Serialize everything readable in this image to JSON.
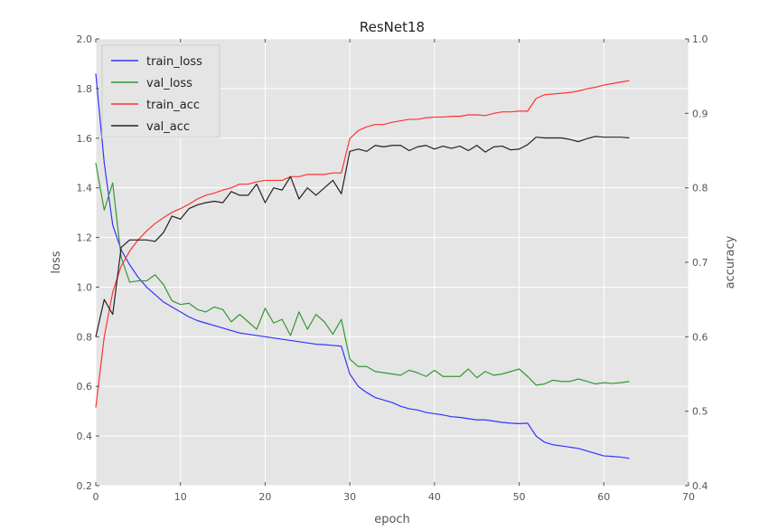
{
  "chart_data": {
    "type": "line",
    "title": "ResNet18",
    "xlabel": "epoch",
    "ylabel": "loss",
    "y2label": "accuracy",
    "xlim": [
      0,
      70
    ],
    "ylim": [
      0.2,
      2.0
    ],
    "y2lim": [
      0.4,
      1.0
    ],
    "xticks": [
      "0",
      "10",
      "20",
      "30",
      "40",
      "50",
      "60",
      "70"
    ],
    "yticks": [
      "0.2",
      "0.4",
      "0.6",
      "0.8",
      "1.0",
      "1.2",
      "1.4",
      "1.6",
      "1.8",
      "2.0"
    ],
    "y2ticks": [
      "0.4",
      "0.5",
      "0.6",
      "0.7",
      "0.8",
      "0.9",
      "1.0"
    ],
    "grid": true,
    "legend_position": "top-left",
    "series": [
      {
        "name": "train_loss",
        "axis": "left",
        "color": "#3333ff",
        "x": [
          0,
          1,
          2,
          3,
          4,
          5,
          6,
          7,
          8,
          9,
          10,
          11,
          12,
          13,
          14,
          15,
          16,
          17,
          18,
          19,
          20,
          21,
          22,
          23,
          24,
          25,
          26,
          27,
          28,
          29,
          30,
          31,
          32,
          33,
          34,
          35,
          36,
          37,
          38,
          39,
          40,
          41,
          42,
          43,
          44,
          45,
          46,
          47,
          48,
          49,
          50,
          51,
          52,
          53,
          54,
          55,
          56,
          57,
          58,
          59,
          60,
          61,
          62,
          63
        ],
        "values": [
          1.86,
          1.5,
          1.25,
          1.15,
          1.09,
          1.04,
          1.0,
          0.97,
          0.94,
          0.92,
          0.9,
          0.88,
          0.865,
          0.855,
          0.845,
          0.835,
          0.825,
          0.815,
          0.81,
          0.805,
          0.8,
          0.795,
          0.79,
          0.785,
          0.78,
          0.775,
          0.77,
          0.768,
          0.765,
          0.762,
          0.65,
          0.6,
          0.575,
          0.555,
          0.545,
          0.535,
          0.52,
          0.51,
          0.505,
          0.495,
          0.49,
          0.485,
          0.478,
          0.475,
          0.47,
          0.465,
          0.465,
          0.46,
          0.455,
          0.452,
          0.45,
          0.452,
          0.4,
          0.375,
          0.365,
          0.36,
          0.355,
          0.35,
          0.34,
          0.33,
          0.32,
          0.318,
          0.315,
          0.31
        ]
      },
      {
        "name": "val_loss",
        "axis": "left",
        "color": "#339933",
        "x": [
          0,
          1,
          2,
          3,
          4,
          5,
          6,
          7,
          8,
          9,
          10,
          11,
          12,
          13,
          14,
          15,
          16,
          17,
          18,
          19,
          20,
          21,
          22,
          23,
          24,
          25,
          26,
          27,
          28,
          29,
          30,
          31,
          32,
          33,
          34,
          35,
          36,
          37,
          38,
          39,
          40,
          41,
          42,
          43,
          44,
          45,
          46,
          47,
          48,
          49,
          50,
          51,
          52,
          53,
          54,
          55,
          56,
          57,
          58,
          59,
          60,
          61,
          62,
          63
        ],
        "values": [
          1.5,
          1.31,
          1.42,
          1.12,
          1.02,
          1.025,
          1.025,
          1.05,
          1.01,
          0.945,
          0.93,
          0.935,
          0.91,
          0.9,
          0.92,
          0.91,
          0.86,
          0.89,
          0.86,
          0.83,
          0.915,
          0.855,
          0.87,
          0.805,
          0.9,
          0.83,
          0.89,
          0.86,
          0.81,
          0.87,
          0.71,
          0.68,
          0.68,
          0.66,
          0.655,
          0.65,
          0.645,
          0.665,
          0.655,
          0.64,
          0.665,
          0.64,
          0.64,
          0.64,
          0.67,
          0.635,
          0.66,
          0.645,
          0.65,
          0.66,
          0.67,
          0.64,
          0.605,
          0.61,
          0.625,
          0.62,
          0.62,
          0.63,
          0.62,
          0.61,
          0.615,
          0.612,
          0.615,
          0.62
        ]
      },
      {
        "name": "train_acc",
        "axis": "right",
        "color": "#ff3333",
        "x": [
          0,
          1,
          2,
          3,
          4,
          5,
          6,
          7,
          8,
          9,
          10,
          11,
          12,
          13,
          14,
          15,
          16,
          17,
          18,
          19,
          20,
          21,
          22,
          23,
          24,
          25,
          26,
          27,
          28,
          29,
          30,
          31,
          32,
          33,
          34,
          35,
          36,
          37,
          38,
          39,
          40,
          41,
          42,
          43,
          44,
          45,
          46,
          47,
          48,
          49,
          50,
          51,
          52,
          53,
          54,
          55,
          56,
          57,
          58,
          59,
          60,
          61,
          62,
          63
        ],
        "values": [
          0.505,
          0.6,
          0.66,
          0.695,
          0.715,
          0.73,
          0.742,
          0.752,
          0.76,
          0.767,
          0.772,
          0.778,
          0.785,
          0.79,
          0.793,
          0.797,
          0.8,
          0.805,
          0.805,
          0.808,
          0.81,
          0.81,
          0.81,
          0.815,
          0.815,
          0.818,
          0.818,
          0.818,
          0.82,
          0.82,
          0.866,
          0.877,
          0.882,
          0.885,
          0.885,
          0.888,
          0.89,
          0.892,
          0.892,
          0.894,
          0.895,
          0.895,
          0.896,
          0.896,
          0.898,
          0.898,
          0.897,
          0.9,
          0.902,
          0.902,
          0.903,
          0.903,
          0.92,
          0.925,
          0.926,
          0.927,
          0.928,
          0.93,
          0.933,
          0.935,
          0.938,
          0.94,
          0.942,
          0.944
        ]
      },
      {
        "name": "val_acc",
        "axis": "right",
        "color": "#222222",
        "x": [
          0,
          1,
          2,
          3,
          4,
          5,
          6,
          7,
          8,
          9,
          10,
          11,
          12,
          13,
          14,
          15,
          16,
          17,
          18,
          19,
          20,
          21,
          22,
          23,
          24,
          25,
          26,
          27,
          28,
          29,
          30,
          31,
          32,
          33,
          34,
          35,
          36,
          37,
          38,
          39,
          40,
          41,
          42,
          43,
          44,
          45,
          46,
          47,
          48,
          49,
          50,
          51,
          52,
          53,
          54,
          55,
          56,
          57,
          58,
          59,
          60,
          61,
          62,
          63
        ],
        "values": [
          0.6,
          0.65,
          0.63,
          0.72,
          0.73,
          0.73,
          0.73,
          0.728,
          0.74,
          0.762,
          0.758,
          0.772,
          0.777,
          0.78,
          0.782,
          0.78,
          0.795,
          0.79,
          0.79,
          0.805,
          0.78,
          0.8,
          0.797,
          0.815,
          0.785,
          0.8,
          0.79,
          0.8,
          0.81,
          0.792,
          0.849,
          0.852,
          0.849,
          0.857,
          0.855,
          0.857,
          0.857,
          0.85,
          0.855,
          0.857,
          0.852,
          0.856,
          0.853,
          0.856,
          0.85,
          0.857,
          0.848,
          0.855,
          0.856,
          0.851,
          0.852,
          0.858,
          0.868,
          0.867,
          0.867,
          0.867,
          0.865,
          0.862,
          0.866,
          0.869,
          0.868,
          0.868,
          0.868,
          0.867
        ]
      }
    ]
  }
}
